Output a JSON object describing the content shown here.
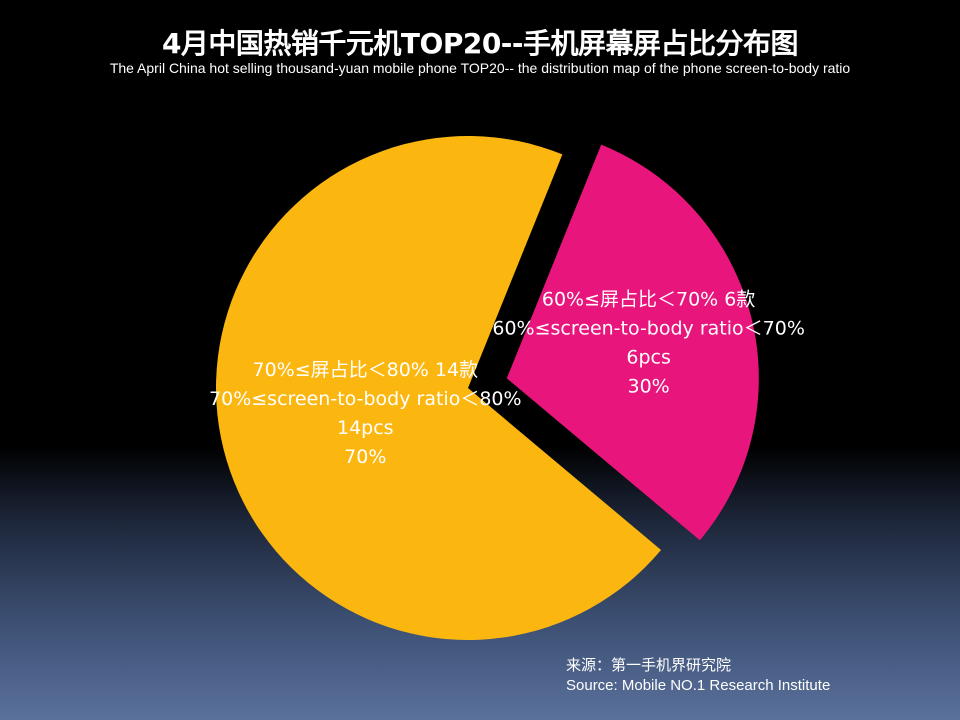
{
  "header": {
    "title": "4月中国热销千元机TOP20--手机屏幕屏占比分布图",
    "subtitle": "The  April China hot selling thousand-yuan mobile phone TOP20-- the distribution map of the phone screen-to-body ratio"
  },
  "chart_data": {
    "type": "pie",
    "title": "4月中国热销千元机TOP20--手机屏幕屏占比分布图",
    "slices": [
      {
        "name": "60%≤屏占比＜70%",
        "count": 6,
        "percent": 30,
        "color": "#e8157c",
        "exploded": true,
        "label_lines": [
          "60%≤屏占比＜70% 6款",
          "60%≤screen-to-body ratio＜70%",
          "6pcs",
          "30%"
        ]
      },
      {
        "name": "70%≤屏占比＜80%",
        "count": 14,
        "percent": 70,
        "color": "#fbb710",
        "exploded": false,
        "label_lines": [
          "70%≤屏占比＜80% 14款",
          "70%≤screen-to-body ratio＜80%",
          "14pcs",
          "70%"
        ]
      }
    ]
  },
  "source": {
    "line1": "来源：第一手机界研究院",
    "line2": "Source: Mobile NO.1 Research Institute"
  }
}
